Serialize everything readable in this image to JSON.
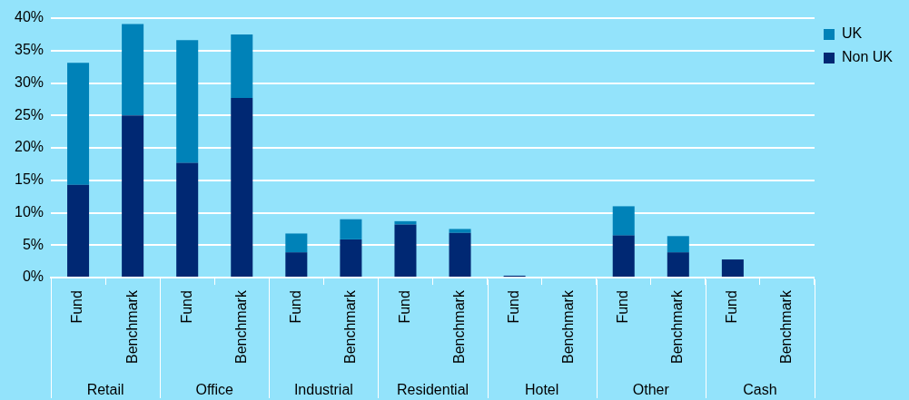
{
  "chart_data": {
    "type": "bar",
    "stacked": true,
    "categories": [
      "Fund",
      "Benchmark",
      "Fund",
      "Benchmark",
      "Fund",
      "Benchmark",
      "Fund",
      "Benchmark",
      "Fund",
      "Benchmark",
      "Fund",
      "Benchmark",
      "Fund",
      "Benchmark"
    ],
    "annotations": [
      "Retail",
      "Office",
      "Industrial",
      "Residential",
      "Hotel",
      "Other",
      "Cash"
    ],
    "series": [
      {
        "name": "Non UK",
        "color": "#002873",
        "values": [
          14.3,
          25,
          17.7,
          27.7,
          3.9,
          5.9,
          8.2,
          6.9,
          0.3,
          0,
          6.5,
          3.9,
          2.8,
          0
        ]
      },
      {
        "name": "UK",
        "color": "#0082b8",
        "values": [
          18.8,
          14.1,
          18.9,
          9.8,
          2.9,
          3.1,
          0.5,
          0.6,
          0,
          0,
          4.5,
          2.5,
          0,
          0
        ]
      }
    ],
    "ylim": [
      0,
      40
    ],
    "yticks": [
      {
        "value": 0,
        "label": "0%"
      },
      {
        "value": 5,
        "label": "5%"
      },
      {
        "value": 10,
        "label": "10%"
      },
      {
        "value": 15,
        "label": "15%"
      },
      {
        "value": 20,
        "label": "20%"
      },
      {
        "value": 25,
        "label": "25%"
      },
      {
        "value": 30,
        "label": "30%"
      },
      {
        "value": 35,
        "label": "35%"
      },
      {
        "value": 40,
        "label": "40%"
      }
    ],
    "grid": "y",
    "legend": "top right"
  }
}
